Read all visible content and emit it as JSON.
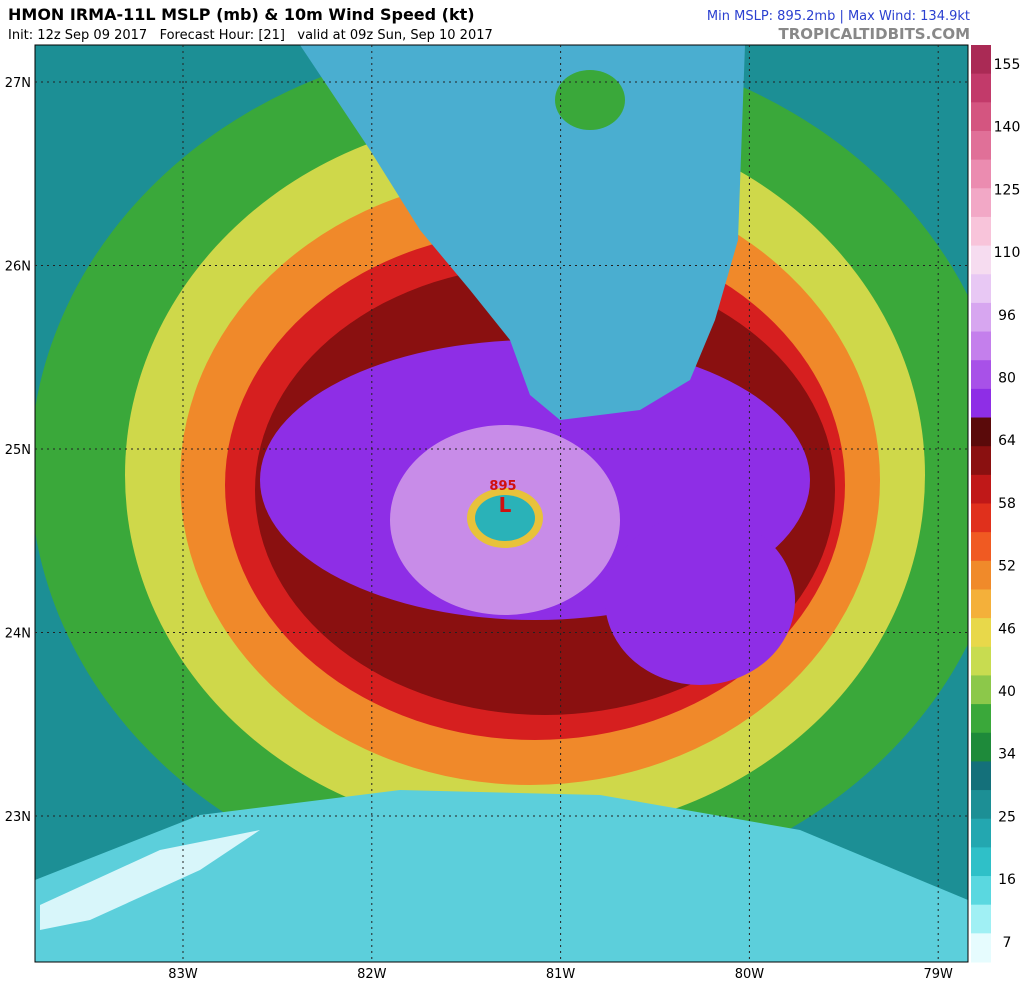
{
  "header": {
    "title": "HMON IRMA-11L MSLP (mb) & 10m Wind Speed (kt)",
    "subtitle": "Init: 12z Sep 09 2017   Forecast Hour: [21]   valid at 09z Sun, Sep 10 2017",
    "stats": "Min MSLP: 895.2mb | Max Wind: 134.9kt",
    "source": "TROPICALTIDBITS.COM"
  },
  "map": {
    "lat_labels": [
      "27N",
      "26N",
      "25N",
      "24N",
      "23N"
    ],
    "lon_labels": [
      "83W",
      "82W",
      "81W",
      "80W",
      "79W"
    ],
    "center_mark": "L",
    "center_pressure": "895"
  },
  "colorbar": {
    "labels": [
      "155",
      "140",
      "125",
      "110",
      "96",
      "80",
      "64",
      "58",
      "52",
      "46",
      "40",
      "34",
      "25",
      "16",
      "7"
    ]
  }
}
